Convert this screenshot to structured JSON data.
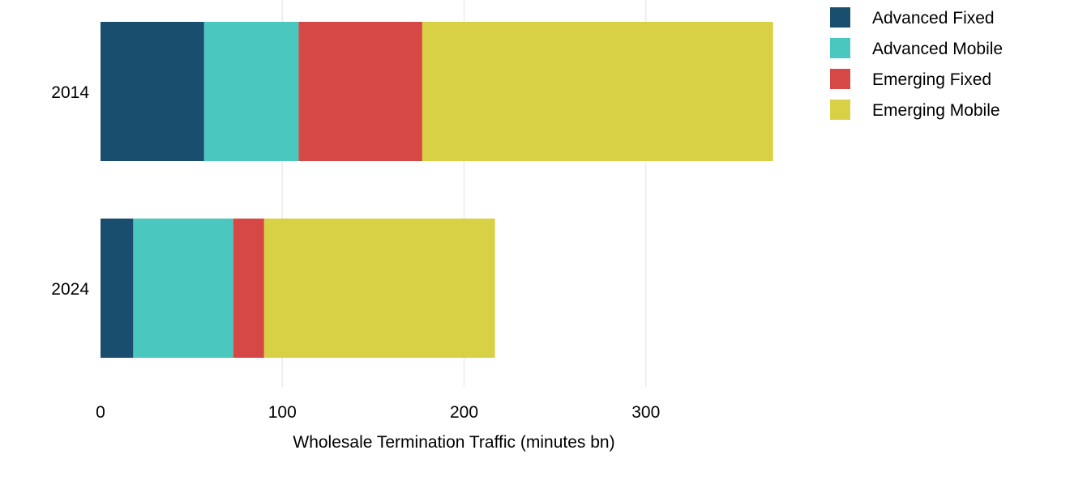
{
  "chart_data": {
    "type": "bar",
    "orientation": "horizontal",
    "stacked": true,
    "categories": [
      "2014",
      "2024"
    ],
    "series": [
      {
        "name": "Advanced Fixed",
        "color": "#1a4e6e",
        "values": [
          57,
          18
        ]
      },
      {
        "name": "Advanced Mobile",
        "color": "#4ac7be",
        "values": [
          52,
          55
        ]
      },
      {
        "name": "Emerging Fixed",
        "color": "#d64845",
        "values": [
          68,
          17
        ]
      },
      {
        "name": "Emerging Mobile",
        "color": "#d8d145",
        "values": [
          193,
          127
        ]
      }
    ],
    "xlabel": "Wholesale Termination Traffic (minutes bn)",
    "ylabel": "",
    "xticks": [
      0,
      100,
      200,
      300
    ],
    "xlim": [
      0,
      370
    ],
    "grid": true,
    "legend_position": "top-right"
  }
}
